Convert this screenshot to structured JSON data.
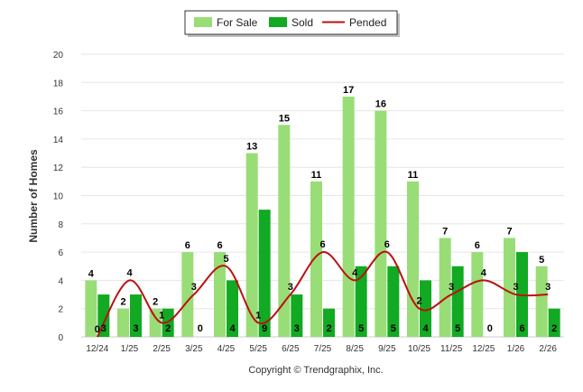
{
  "chart_data": {
    "type": "bar",
    "categories": [
      "12/24",
      "1/25",
      "2/25",
      "3/25",
      "4/25",
      "5/25",
      "6/25",
      "7/25",
      "8/25",
      "9/25",
      "10/25",
      "11/25",
      "12/25",
      "1/26",
      "2/26"
    ],
    "series": [
      {
        "name": "For Sale",
        "type": "bar",
        "color": "#99dd77",
        "values": [
          4,
          2,
          2,
          6,
          6,
          13,
          15,
          11,
          17,
          16,
          11,
          7,
          6,
          7,
          5
        ]
      },
      {
        "name": "Sold",
        "type": "bar",
        "color": "#11aa22",
        "values": [
          3,
          3,
          2,
          0,
          4,
          9,
          3,
          2,
          5,
          5,
          4,
          5,
          0,
          6,
          2
        ]
      },
      {
        "name": "Pended",
        "type": "line",
        "color": "#bb1111",
        "values": [
          0,
          4,
          1,
          3,
          5,
          1,
          3,
          6,
          4,
          6,
          2,
          3,
          4,
          3,
          3
        ]
      }
    ],
    "ylabel": "Number of Homes",
    "ylim": [
      0,
      20
    ],
    "yticks": [
      0,
      2,
      4,
      6,
      8,
      10,
      12,
      14,
      16,
      18,
      20
    ],
    "grid": true,
    "legend": "top-center"
  },
  "footer": {
    "copyright": "Copyright © Trendgraphix, Inc."
  }
}
